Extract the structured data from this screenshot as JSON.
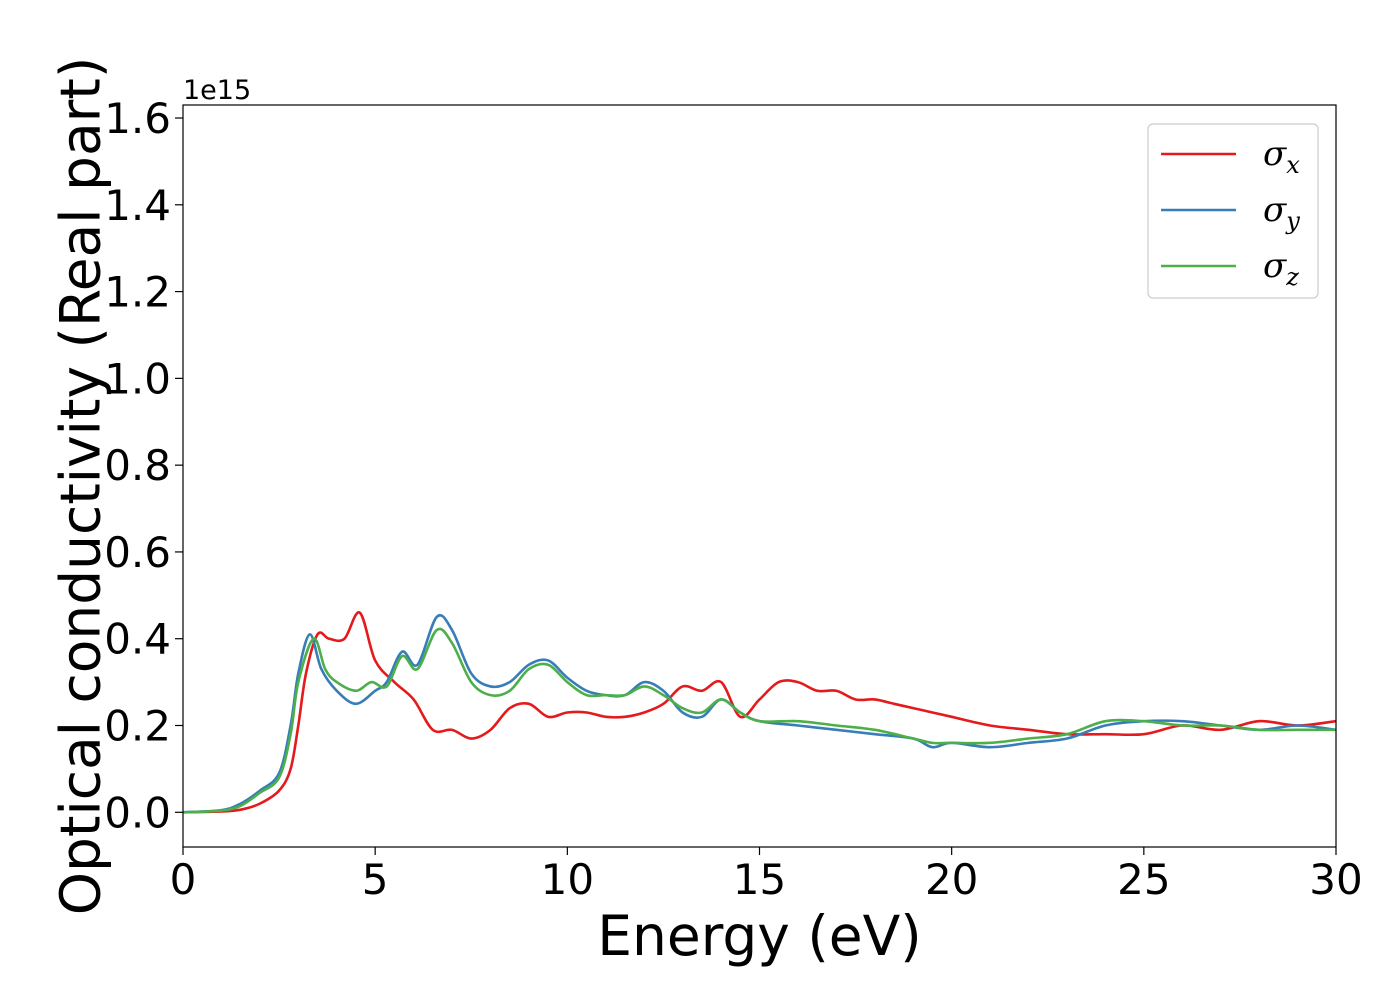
{
  "chart_data": {
    "type": "line",
    "title": "",
    "xlabel": "Energy (eV)",
    "ylabel": "Optical conductivity (Real part)",
    "y_offset_label": "1e15",
    "xlim": [
      0,
      30
    ],
    "ylim": [
      -0.08,
      1.63
    ],
    "x_ticks": [
      0,
      5,
      10,
      15,
      20,
      25,
      30
    ],
    "x_tick_labels": [
      "0",
      "5",
      "10",
      "15",
      "20",
      "25",
      "30"
    ],
    "y_ticks": [
      0.0,
      0.2,
      0.4,
      0.6,
      0.8,
      1.0,
      1.2,
      1.4,
      1.6
    ],
    "y_tick_labels": [
      "0.0",
      "0.2",
      "0.4",
      "0.6",
      "0.8",
      "1.0",
      "1.2",
      "1.4",
      "1.6"
    ],
    "grid": false,
    "legend_position": "top-right",
    "series": [
      {
        "name": "σx",
        "symbol": "σ",
        "subscript": "x",
        "color": "#e41a1c",
        "x": [
          0,
          1,
          1.5,
          2,
          2.5,
          2.8,
          3.0,
          3.2,
          3.5,
          3.8,
          4.2,
          4.6,
          5.0,
          5.5,
          6.0,
          6.5,
          7.0,
          7.5,
          8.0,
          8.5,
          9.0,
          9.5,
          10.0,
          10.5,
          11.0,
          11.5,
          12.0,
          12.5,
          13.0,
          13.5,
          14.0,
          14.5,
          15.0,
          15.5,
          16.0,
          16.5,
          17.0,
          17.5,
          18.0,
          18.5,
          19.0,
          19.5,
          20.0,
          21.0,
          22.0,
          23.0,
          24.0,
          25.0,
          26.0,
          27.0,
          28.0,
          29.0,
          30.0
        ],
        "y": [
          0.0,
          0.002,
          0.006,
          0.02,
          0.05,
          0.1,
          0.2,
          0.32,
          0.41,
          0.4,
          0.4,
          0.46,
          0.35,
          0.3,
          0.26,
          0.19,
          0.19,
          0.17,
          0.19,
          0.24,
          0.25,
          0.22,
          0.23,
          0.23,
          0.22,
          0.22,
          0.23,
          0.25,
          0.29,
          0.28,
          0.3,
          0.22,
          0.26,
          0.3,
          0.3,
          0.28,
          0.28,
          0.26,
          0.26,
          0.25,
          0.24,
          0.23,
          0.22,
          0.2,
          0.19,
          0.18,
          0.18,
          0.18,
          0.2,
          0.19,
          0.21,
          0.2,
          0.21
        ]
      },
      {
        "name": "σy",
        "symbol": "σ",
        "subscript": "y",
        "color": "#377eb8",
        "x": [
          0,
          1,
          1.5,
          2,
          2.5,
          2.8,
          3.0,
          3.3,
          3.6,
          4.0,
          4.5,
          5.0,
          5.3,
          5.7,
          6.1,
          6.6,
          7.0,
          7.5,
          8.0,
          8.5,
          9.0,
          9.5,
          10.0,
          10.5,
          11.0,
          11.5,
          12.0,
          12.5,
          13.0,
          13.5,
          14.0,
          14.5,
          15.0,
          16.0,
          17.0,
          18.0,
          19.0,
          19.5,
          20.0,
          21.0,
          22.0,
          23.0,
          24.0,
          25.0,
          26.0,
          27.0,
          28.0,
          29.0,
          30.0
        ],
        "y": [
          0.0,
          0.005,
          0.02,
          0.05,
          0.09,
          0.2,
          0.32,
          0.41,
          0.33,
          0.28,
          0.25,
          0.28,
          0.3,
          0.37,
          0.34,
          0.45,
          0.42,
          0.32,
          0.29,
          0.3,
          0.34,
          0.35,
          0.31,
          0.28,
          0.27,
          0.27,
          0.3,
          0.28,
          0.23,
          0.22,
          0.26,
          0.23,
          0.21,
          0.2,
          0.19,
          0.18,
          0.17,
          0.15,
          0.16,
          0.15,
          0.16,
          0.17,
          0.2,
          0.21,
          0.21,
          0.2,
          0.19,
          0.2,
          0.19
        ]
      },
      {
        "name": "σz",
        "symbol": "σ",
        "subscript": "z",
        "color": "#4daf4a",
        "x": [
          0,
          1,
          1.5,
          2,
          2.5,
          2.8,
          3.0,
          3.4,
          3.7,
          4.0,
          4.5,
          4.9,
          5.3,
          5.7,
          6.1,
          6.6,
          7.0,
          7.5,
          8.0,
          8.5,
          9.0,
          9.5,
          10.0,
          10.5,
          11.0,
          11.5,
          12.0,
          12.5,
          13.0,
          13.5,
          14.0,
          14.5,
          15.0,
          16.0,
          17.0,
          18.0,
          19.0,
          19.5,
          20.0,
          21.0,
          22.0,
          23.0,
          24.0,
          25.0,
          26.0,
          27.0,
          28.0,
          29.0,
          30.0
        ],
        "y": [
          0.0,
          0.004,
          0.015,
          0.045,
          0.08,
          0.18,
          0.3,
          0.4,
          0.33,
          0.3,
          0.28,
          0.3,
          0.29,
          0.36,
          0.33,
          0.42,
          0.39,
          0.3,
          0.27,
          0.28,
          0.33,
          0.34,
          0.3,
          0.27,
          0.27,
          0.27,
          0.29,
          0.27,
          0.24,
          0.23,
          0.26,
          0.23,
          0.21,
          0.21,
          0.2,
          0.19,
          0.17,
          0.16,
          0.16,
          0.16,
          0.17,
          0.18,
          0.21,
          0.21,
          0.2,
          0.2,
          0.19,
          0.19,
          0.19
        ]
      }
    ]
  }
}
